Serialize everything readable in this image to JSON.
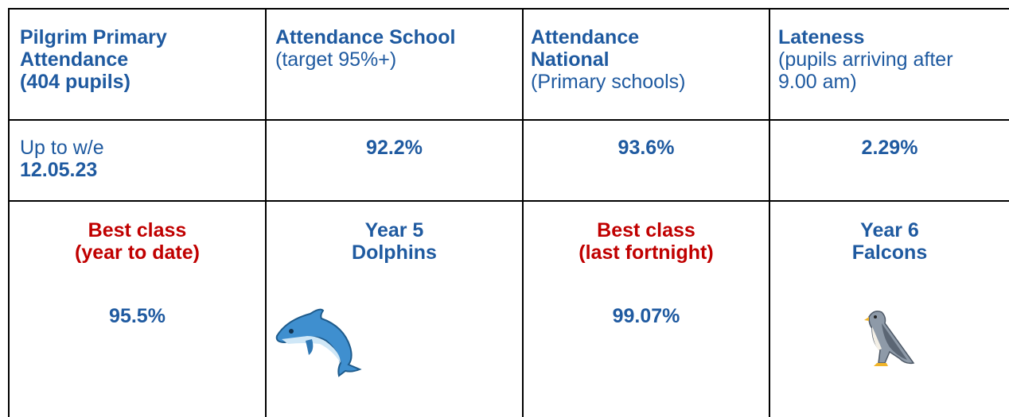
{
  "table": {
    "header": [
      {
        "title": [
          "Pilgrim Primary",
          "Attendance",
          "(404 pupils)"
        ]
      },
      {
        "title": [
          "Attendance School"
        ],
        "note": [
          "(target 95%+)"
        ]
      },
      {
        "title": [
          "Attendance",
          "National"
        ],
        "note": [
          "(Primary schools)"
        ]
      },
      {
        "title": [
          "Lateness"
        ],
        "note": [
          "(pupils arriving after",
          "9.00 am)"
        ]
      }
    ],
    "rows": [
      {
        "label": "Up to w/e",
        "date": "12.05.23",
        "values": [
          "92.2%",
          "93.6%",
          "2.29%"
        ]
      },
      {
        "cells": [
          {
            "title": [
              "Best class",
              "(year to date)"
            ],
            "value": "95.5%"
          },
          {
            "title": [
              "Year 5",
              "Dolphins"
            ]
          },
          {
            "title": [
              "Best class",
              "(last fortnight)"
            ],
            "value": "99.07%"
          },
          {
            "title": [
              "Year 6",
              "Falcons"
            ]
          }
        ]
      }
    ]
  }
}
